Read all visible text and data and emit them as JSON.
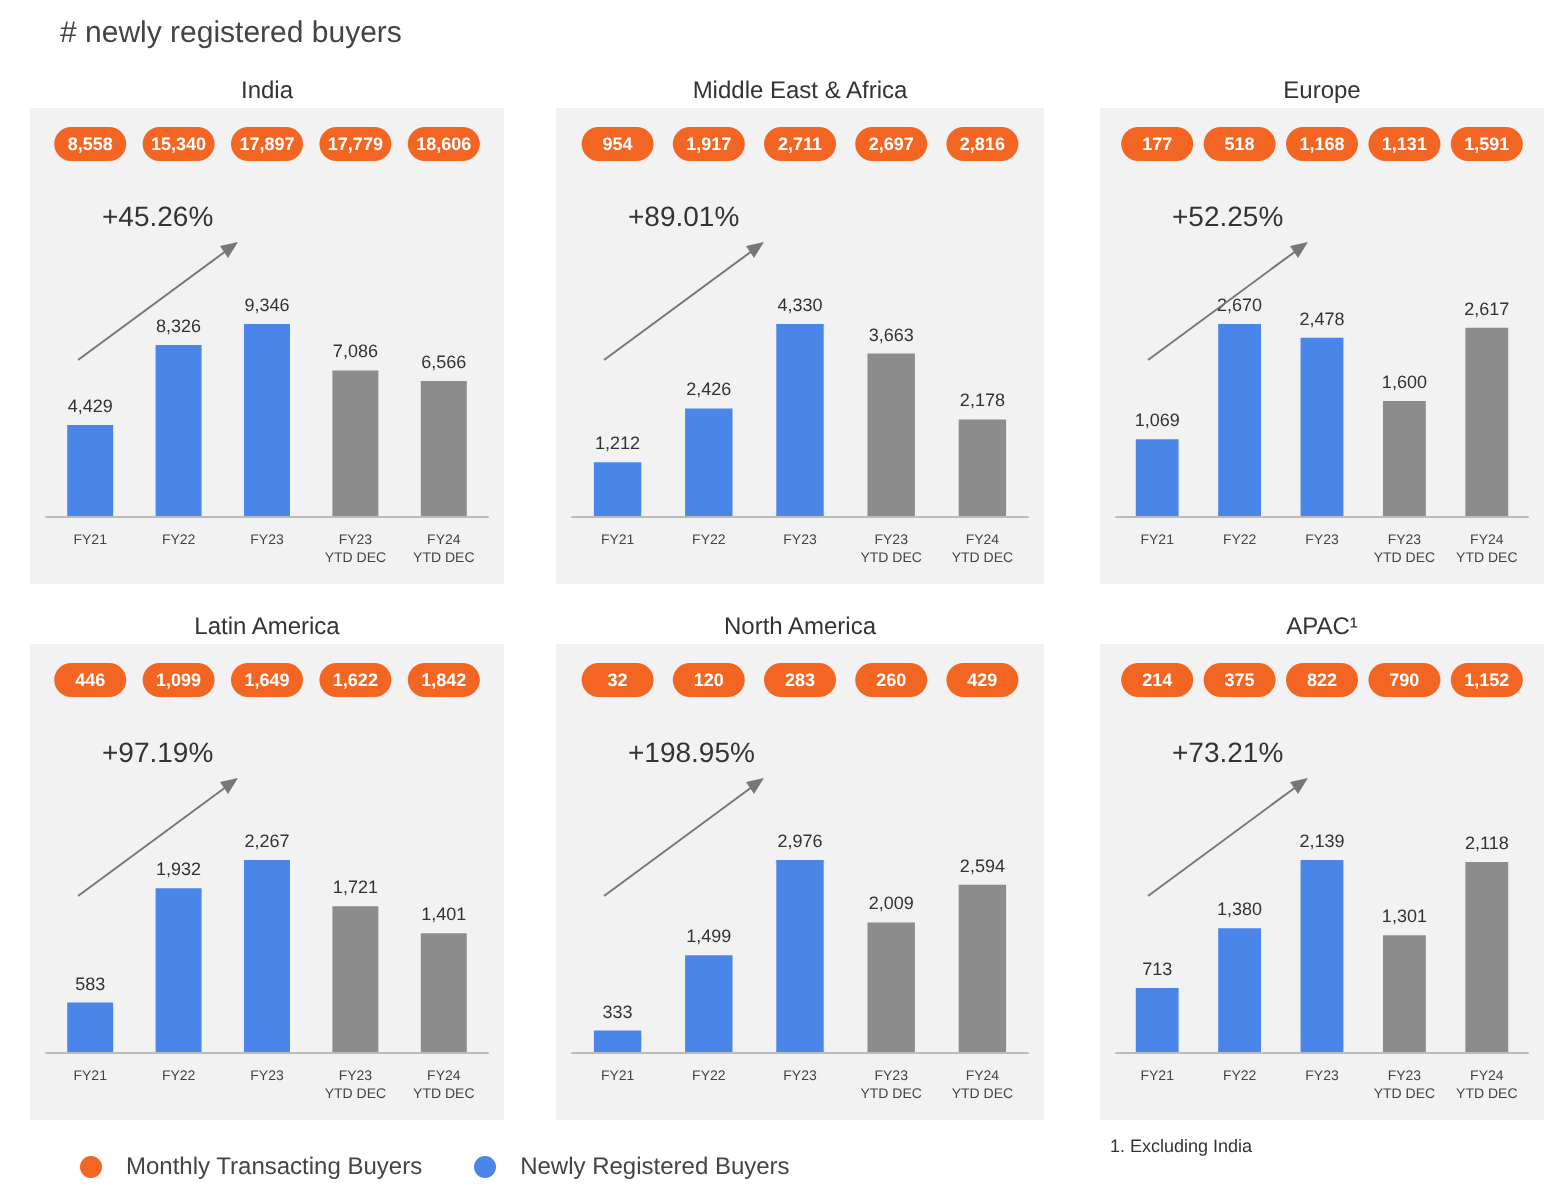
{
  "chart_data": [
    {
      "type": "bar",
      "title": "India",
      "categories": [
        "FY21",
        "FY22",
        "FY23",
        "FY23\nYTD DEC",
        "FY24\nYTD DEC"
      ],
      "legend": "bottom",
      "data_labels": true,
      "annotations": [
        "+45.26%",
        "# newly registered buyers"
      ],
      "series": [
        {
          "name": "Newly Registered Buyers",
          "color": "#4a86e8",
          "colors": [
            "#4a86e8",
            "#4a86e8",
            "#4a86e8",
            "#8c8c8c",
            "#8c8c8c"
          ],
          "values": [
            4429,
            8326,
            9346,
            7086,
            6566
          ],
          "value_labels": [
            "4,429",
            "8,326",
            "9,346",
            "7,086",
            "6,566"
          ]
        }
      ]
    },
    {
      "type": "bar",
      "title": "Middle East & Africa",
      "categories": [
        "FY21",
        "FY22",
        "FY23",
        "FY23\nYTD DEC",
        "FY24\nYTD DEC"
      ],
      "data_labels": true,
      "annotations": [
        "+89.01%"
      ],
      "series": [
        {
          "colors": [
            "#4a86e8",
            "#4a86e8",
            "#4a86e8",
            "#8c8c8c",
            "#8c8c8c"
          ],
          "values": [
            1212,
            2426,
            4330,
            3663,
            2178
          ],
          "value_labels": [
            "1,212",
            "2,426",
            "4,330",
            "3,663",
            "2,178"
          ]
        }
      ]
    },
    {
      "type": "bar",
      "title": "Europe",
      "categories": [
        "FY21",
        "FY22",
        "FY23",
        "FY23\nYTD DEC",
        "FY24\nYTD DEC"
      ],
      "data_labels": true,
      "annotations": [
        "+52.25%"
      ],
      "series": [
        {
          "colors": [
            "#4a86e8",
            "#4a86e8",
            "#4a86e8",
            "#8c8c8c",
            "#8c8c8c"
          ],
          "values": [
            1069,
            2670,
            2478,
            1600,
            2617
          ],
          "value_labels": [
            "1,069",
            "2,670",
            "2,478",
            "1,600",
            "2,617"
          ]
        }
      ]
    },
    {
      "type": "bar",
      "title": "Latin America",
      "categories": [
        "FY21",
        "FY22",
        "FY23",
        "FY23\nYTD DEC",
        "FY24\nYTD DEC"
      ],
      "data_labels": true,
      "annotations": [
        "+97.19%"
      ],
      "series": [
        {
          "colors": [
            "#4a86e8",
            "#4a86e8",
            "#4a86e8",
            "#8c8c8c",
            "#8c8c8c"
          ],
          "values": [
            583,
            1932,
            2267,
            1721,
            1401
          ],
          "value_labels": [
            "583",
            "1,932",
            "2,267",
            "1,721",
            "1,401"
          ]
        }
      ]
    },
    {
      "type": "bar",
      "title": "North America",
      "categories": [
        "FY21",
        "FY22",
        "FY23",
        "FY23\nYTD DEC",
        "FY24\nYTD DEC"
      ],
      "data_labels": true,
      "annotations": [
        "+198.95%"
      ],
      "series": [
        {
          "colors": [
            "#4a86e8",
            "#4a86e8",
            "#4a86e8",
            "#8c8c8c",
            "#8c8c8c"
          ],
          "values": [
            333,
            1499,
            2976,
            2009,
            2594
          ],
          "value_labels": [
            "333",
            "1,499",
            "2,976",
            "2,009",
            "2,594"
          ]
        }
      ]
    },
    {
      "type": "bar",
      "title": "APAC¹",
      "categories": [
        "FY21",
        "FY22",
        "FY23",
        "FY23\nYTD DEC",
        "FY24\nYTD DEC"
      ],
      "data_labels": true,
      "annotations": [
        "+73.21%",
        "1. Excluding India"
      ],
      "series": [
        {
          "colors": [
            "#4a86e8",
            "#4a86e8",
            "#4a86e8",
            "#8c8c8c",
            "#8c8c8c"
          ],
          "values": [
            713,
            1380,
            2139,
            1301,
            2118
          ],
          "value_labels": [
            "713",
            "1,380",
            "2,139",
            "1,301",
            "2,118"
          ]
        }
      ]
    },
    {
      "type": "other",
      "legend": "bottom",
      "series": [
        {
          "name": "Monthly Transacting Buyers",
          "color": "#f26522",
          "values": [
            8558,
            15340,
            17897,
            17779,
            18606
          ],
          "value_labels": [
            "8,558",
            "15,340",
            "17,897",
            "17,779",
            "18,606"
          ]
        }
      ]
    },
    {
      "type": "other",
      "series": [
        {
          "color": "#f26522",
          "values": [
            954,
            1917,
            2711,
            2697,
            2816
          ],
          "value_labels": [
            "954",
            "1,917",
            "2,711",
            "2,697",
            "2,816"
          ]
        }
      ]
    },
    {
      "type": "other",
      "series": [
        {
          "color": "#f26522",
          "values": [
            177,
            518,
            1168,
            1131,
            1591
          ],
          "value_labels": [
            "177",
            "518",
            "1,168",
            "1,131",
            "1,591"
          ]
        }
      ]
    },
    {
      "type": "other",
      "series": [
        {
          "color": "#f26522",
          "values": [
            446,
            1099,
            1649,
            1622,
            1842
          ],
          "value_labels": [
            "446",
            "1,099",
            "1,649",
            "1,622",
            "1,842"
          ]
        }
      ]
    },
    {
      "type": "other",
      "series": [
        {
          "color": "#f26522",
          "values": [
            32,
            120,
            283,
            260,
            429
          ],
          "value_labels": [
            "32",
            "120",
            "283",
            "260",
            "429"
          ]
        }
      ]
    },
    {
      "type": "other",
      "series": [
        {
          "color": "#f26522",
          "values": [
            214,
            375,
            822,
            790,
            1152
          ],
          "value_labels": [
            "214",
            "375",
            "822",
            "790",
            "1,152"
          ]
        }
      ]
    }
  ]
}
